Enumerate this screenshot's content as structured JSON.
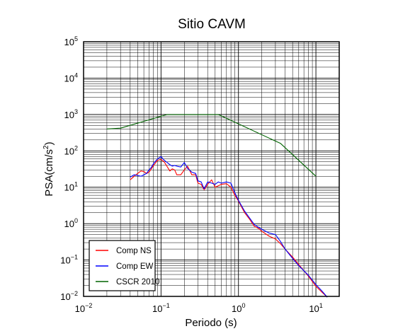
{
  "chart_data": {
    "type": "line",
    "title": "Sitio CAVM",
    "xlabel": "Periodo (s)",
    "ylabel_base": "PSA(cm/s",
    "ylabel_exp": "2",
    "ylabel_close": ")",
    "xscale": "log",
    "yscale": "log",
    "xlim": [
      0.01,
      20
    ],
    "ylim": [
      0.01,
      100000
    ],
    "grid": true,
    "legend_position": "bottom-left",
    "x_ticks": [
      {
        "base": "10",
        "exp": "−2"
      },
      {
        "base": "10",
        "exp": "−1"
      },
      {
        "base": "10",
        "exp": "0"
      },
      {
        "base": "10",
        "exp": "1"
      }
    ],
    "y_ticks": [
      {
        "base": "10",
        "exp": "−2"
      },
      {
        "base": "10",
        "exp": "−1"
      },
      {
        "base": "10",
        "exp": "0"
      },
      {
        "base": "10",
        "exp": "1"
      },
      {
        "base": "10",
        "exp": "2"
      },
      {
        "base": "10",
        "exp": "3"
      },
      {
        "base": "10",
        "exp": "4"
      },
      {
        "base": "10",
        "exp": "5"
      }
    ],
    "series": [
      {
        "name": "Comp NS",
        "color": "#ff0000",
        "x": [
          0.04,
          0.045,
          0.05,
          0.055,
          0.06,
          0.065,
          0.07,
          0.075,
          0.08,
          0.09,
          0.1,
          0.11,
          0.12,
          0.13,
          0.14,
          0.15,
          0.16,
          0.18,
          0.2,
          0.22,
          0.25,
          0.28,
          0.3,
          0.33,
          0.36,
          0.4,
          0.45,
          0.5,
          0.55,
          0.6,
          0.7,
          0.8,
          0.9,
          1.0,
          1.2,
          1.4,
          1.6,
          1.8,
          2.0,
          2.5,
          3.0,
          3.5,
          4.0,
          5.0,
          6.0,
          8.0,
          10.0,
          12.0,
          14.0
        ],
        "y": [
          16,
          20,
          24,
          28,
          27,
          24,
          26,
          32,
          40,
          55,
          58,
          50,
          37,
          28,
          32,
          30,
          22,
          22,
          30,
          38,
          22,
          22,
          13,
          12,
          8.5,
          12,
          16,
          10,
          11,
          12,
          12.5,
          10,
          6,
          4.2,
          2.0,
          1.3,
          0.85,
          0.75,
          0.62,
          0.45,
          0.38,
          0.28,
          0.2,
          0.12,
          0.075,
          0.036,
          0.019,
          0.013,
          0.0095
        ]
      },
      {
        "name": "Comp EW",
        "color": "#0000ff",
        "x": [
          0.04,
          0.045,
          0.05,
          0.055,
          0.06,
          0.065,
          0.07,
          0.075,
          0.08,
          0.09,
          0.1,
          0.11,
          0.12,
          0.13,
          0.14,
          0.15,
          0.16,
          0.18,
          0.2,
          0.22,
          0.25,
          0.28,
          0.3,
          0.33,
          0.36,
          0.4,
          0.45,
          0.5,
          0.55,
          0.6,
          0.7,
          0.8,
          0.9,
          1.0,
          1.2,
          1.4,
          1.6,
          1.8,
          2.0,
          2.5,
          3.0,
          3.5,
          4.0,
          5.0,
          6.0,
          8.0,
          10.0,
          12.0,
          14.0
        ],
        "y": [
          19,
          22,
          21,
          20,
          22,
          24,
          30,
          35,
          45,
          60,
          70,
          55,
          48,
          42,
          38,
          40,
          38,
          36,
          48,
          33,
          26,
          24,
          15,
          14,
          9,
          14,
          13,
          12,
          14,
          13,
          14,
          13,
          7,
          4.4,
          2.2,
          1.4,
          0.95,
          0.8,
          0.7,
          0.55,
          0.5,
          0.32,
          0.2,
          0.11,
          0.07,
          0.038,
          0.021,
          0.014,
          0.0095
        ]
      },
      {
        "name": "CSCR 2010",
        "color": "#006400",
        "x": [
          0.02,
          0.03,
          0.12,
          0.55,
          3.5,
          10.0
        ],
        "y": [
          400,
          420,
          1000,
          1000,
          160,
          20
        ]
      }
    ]
  }
}
